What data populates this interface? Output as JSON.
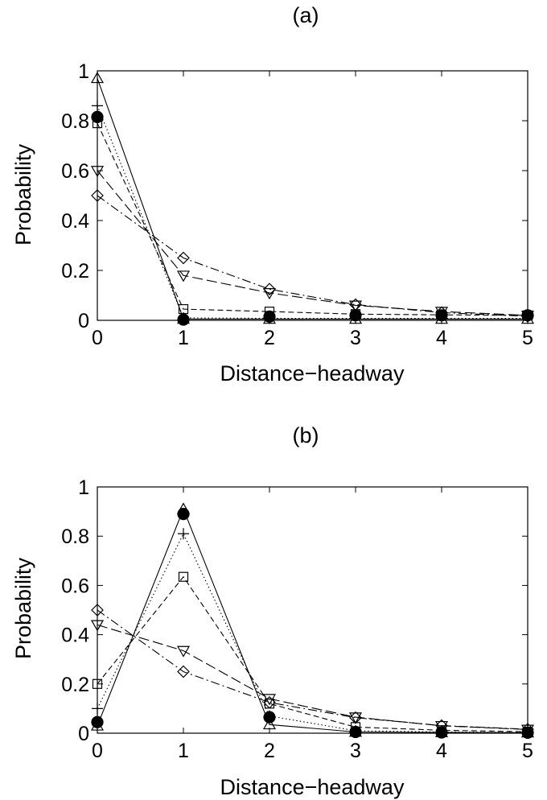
{
  "chart_data": [
    {
      "type": "line",
      "panel_label": "(a)",
      "xlabel": "Distance−headway",
      "ylabel": "Probability",
      "xlim": [
        0,
        5
      ],
      "ylim": [
        0,
        1
      ],
      "xticks": [
        "0",
        "1",
        "2",
        "3",
        "4",
        "5"
      ],
      "yticks": [
        "0",
        "0.2",
        "0.4",
        "0.6",
        "0.8",
        "1"
      ],
      "grid": false,
      "legend": "none",
      "x": [
        0,
        1,
        2,
        3,
        4,
        5
      ],
      "series": [
        {
          "marker": "triangle-up",
          "dash": "solid",
          "values": [
            0.97,
            0.005,
            0.005,
            0.005,
            0.005,
            0.005
          ]
        },
        {
          "marker": "plus",
          "dash": "dotted",
          "values": [
            0.86,
            0.01,
            0.008,
            0.008,
            0.008,
            0.008
          ]
        },
        {
          "marker": "square",
          "dash": "dashed",
          "values": [
            0.79,
            0.045,
            0.035,
            0.025,
            0.022,
            0.02
          ]
        },
        {
          "marker": "triangle-down",
          "dash": "long-dash",
          "values": [
            0.6,
            0.18,
            0.11,
            0.06,
            0.035,
            0.02
          ]
        },
        {
          "marker": "diamond",
          "dash": "dash-dot",
          "values": [
            0.5,
            0.25,
            0.125,
            0.063,
            0.031,
            0.016
          ]
        },
        {
          "marker": "circle-filled",
          "dash": "none",
          "values": [
            0.815,
            0.003,
            0.015,
            0.02,
            0.02,
            0.02
          ]
        }
      ]
    },
    {
      "type": "line",
      "panel_label": "(b)",
      "xlabel": "Distance−headway",
      "ylabel": "Probability",
      "xlim": [
        0,
        5
      ],
      "ylim": [
        0,
        1
      ],
      "xticks": [
        "0",
        "1",
        "2",
        "3",
        "4",
        "5"
      ],
      "yticks": [
        "0",
        "0.2",
        "0.4",
        "0.6",
        "0.8",
        "1"
      ],
      "grid": false,
      "legend": "none",
      "x": [
        0,
        1,
        2,
        3,
        4,
        5
      ],
      "series": [
        {
          "marker": "triangle-up",
          "dash": "solid",
          "values": [
            0.03,
            0.91,
            0.035,
            0.005,
            0.003,
            0.002
          ]
        },
        {
          "marker": "plus",
          "dash": "dotted",
          "values": [
            0.1,
            0.81,
            0.07,
            0.01,
            0.005,
            0.003
          ]
        },
        {
          "marker": "square",
          "dash": "dashed",
          "values": [
            0.2,
            0.635,
            0.12,
            0.025,
            0.012,
            0.006
          ]
        },
        {
          "marker": "triangle-down",
          "dash": "long-dash",
          "values": [
            0.44,
            0.335,
            0.14,
            0.065,
            0.03,
            0.015
          ]
        },
        {
          "marker": "diamond",
          "dash": "dash-dot",
          "values": [
            0.5,
            0.25,
            0.125,
            0.063,
            0.031,
            0.016
          ]
        },
        {
          "marker": "circle-filled",
          "dash": "none",
          "values": [
            0.045,
            0.89,
            0.065,
            0.005,
            0.003,
            0.002
          ]
        }
      ]
    }
  ]
}
